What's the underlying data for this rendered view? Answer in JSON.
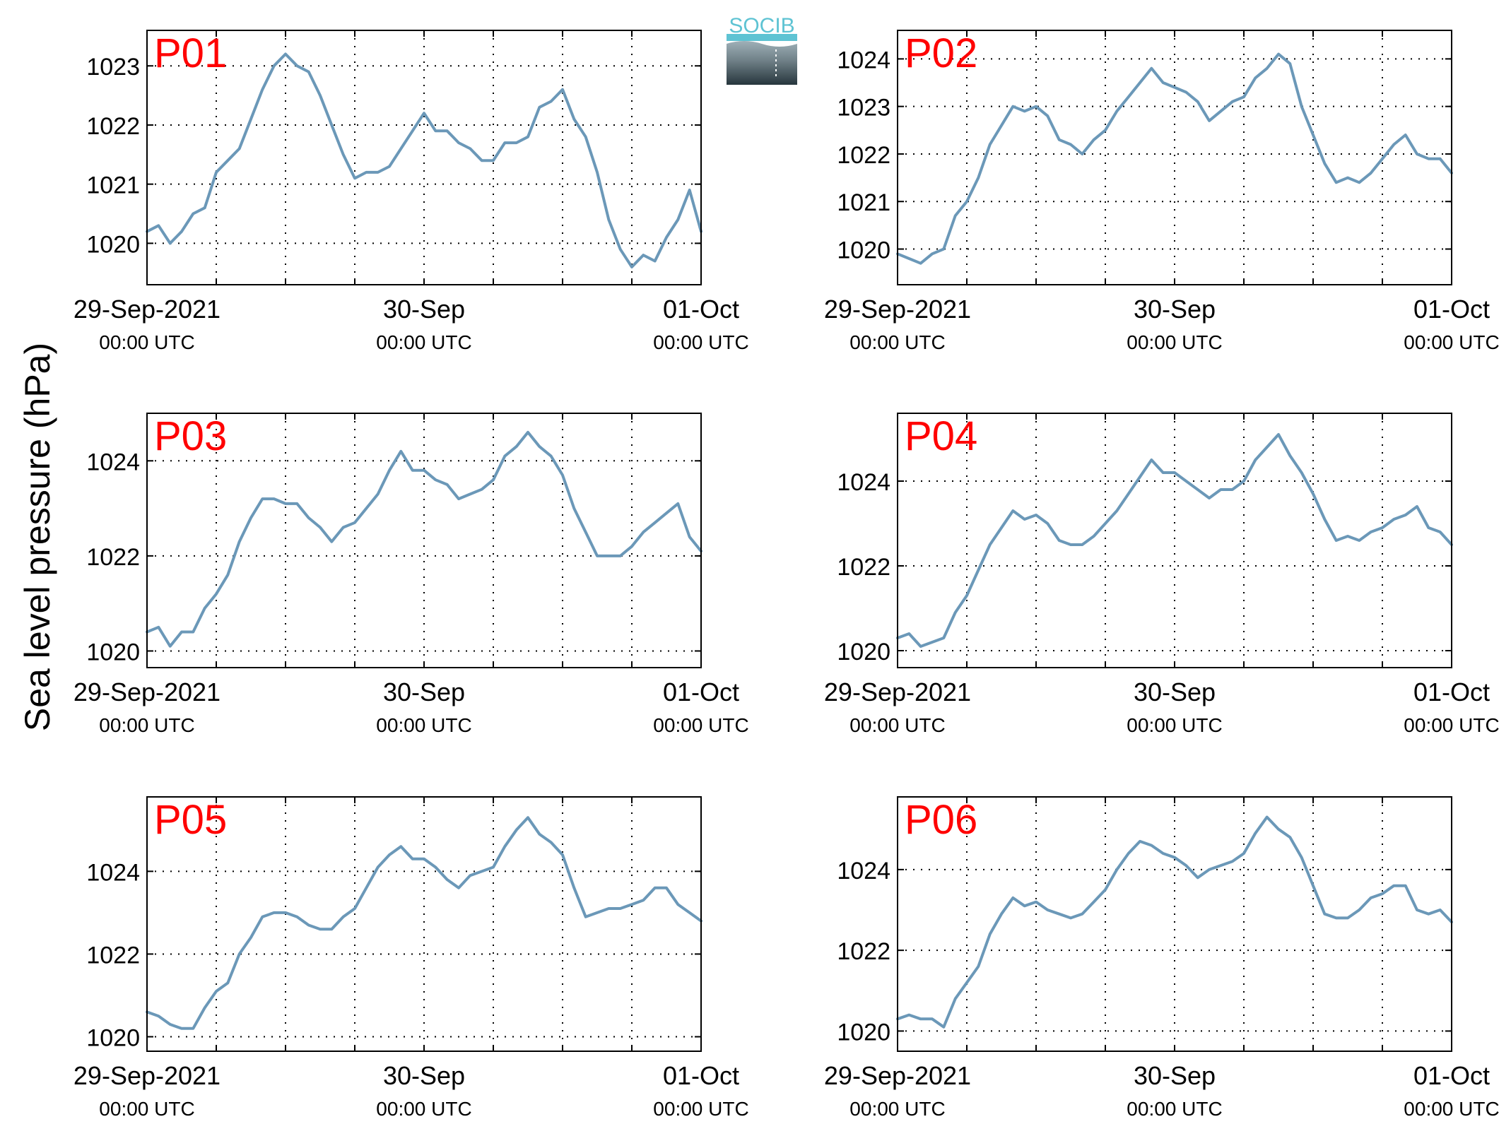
{
  "figure": {
    "ylabel": "Sea level pressure (hPa)",
    "logo_text": "SOCIB",
    "colors": {
      "line": "#6b98b8",
      "station_label": "#ff0000",
      "axis": "#000000",
      "grid": "#000000",
      "logo_top": "#5ec3d3",
      "logo_bottom": "#27363d"
    }
  },
  "chart_data": [
    {
      "type": "line",
      "panel_label": "P01",
      "xlabel": "",
      "ylabel": "",
      "xlim": [
        "2021-09-29T00:00",
        "2021-10-01T00:00"
      ],
      "x_ticks": [
        {
          "x": "2021-09-29T00:00",
          "date": "29-Sep-2021",
          "time": "00:00 UTC"
        },
        {
          "x": "2021-09-30T00:00",
          "date": "30-Sep",
          "time": "00:00 UTC"
        },
        {
          "x": "2021-10-01T00:00",
          "date": "01-Oct",
          "time": "00:00 UTC"
        }
      ],
      "x_minor_hours": [
        6,
        12,
        18,
        30,
        36,
        42
      ],
      "ylim": [
        1019.3,
        1023.6
      ],
      "y_ticks": [
        1020,
        1021,
        1022,
        1023
      ],
      "grid": true,
      "x": [
        "2021-09-29T00:00",
        "2021-09-29T01:00",
        "2021-09-29T02:00",
        "2021-09-29T03:00",
        "2021-09-29T04:00",
        "2021-09-29T05:00",
        "2021-09-29T06:00",
        "2021-09-29T07:00",
        "2021-09-29T08:00",
        "2021-09-29T09:00",
        "2021-09-29T10:00",
        "2021-09-29T11:00",
        "2021-09-29T12:00",
        "2021-09-29T13:00",
        "2021-09-29T14:00",
        "2021-09-29T15:00",
        "2021-09-29T16:00",
        "2021-09-29T17:00",
        "2021-09-29T18:00",
        "2021-09-29T19:00",
        "2021-09-29T20:00",
        "2021-09-29T21:00",
        "2021-09-29T22:00",
        "2021-09-29T23:00",
        "2021-09-30T00:00",
        "2021-09-30T01:00",
        "2021-09-30T02:00",
        "2021-09-30T03:00",
        "2021-09-30T04:00",
        "2021-09-30T05:00",
        "2021-09-30T06:00",
        "2021-09-30T07:00",
        "2021-09-30T08:00",
        "2021-09-30T09:00",
        "2021-09-30T10:00",
        "2021-09-30T11:00",
        "2021-09-30T12:00",
        "2021-09-30T13:00",
        "2021-09-30T14:00",
        "2021-09-30T15:00",
        "2021-09-30T16:00",
        "2021-09-30T17:00",
        "2021-09-30T18:00",
        "2021-09-30T19:00",
        "2021-09-30T20:00",
        "2021-09-30T21:00",
        "2021-09-30T22:00",
        "2021-09-30T23:00",
        "2021-10-01T00:00"
      ],
      "values": [
        1020.2,
        1020.3,
        1020.0,
        1020.2,
        1020.5,
        1020.6,
        1021.2,
        1021.4,
        1021.6,
        1022.1,
        1022.6,
        1023.0,
        1023.2,
        1023.0,
        1022.9,
        1022.5,
        1022.0,
        1021.5,
        1021.1,
        1021.2,
        1021.2,
        1021.3,
        1021.6,
        1021.9,
        1022.2,
        1021.9,
        1021.9,
        1021.7,
        1021.6,
        1021.4,
        1021.4,
        1021.7,
        1021.7,
        1021.8,
        1022.3,
        1022.4,
        1022.6,
        1022.1,
        1021.8,
        1021.2,
        1020.4,
        1019.9,
        1019.6,
        1019.8,
        1019.7,
        1020.1,
        1020.4,
        1020.9,
        1020.2
      ]
    },
    {
      "type": "line",
      "panel_label": "P02",
      "xlabel": "",
      "ylabel": "",
      "xlim": [
        "2021-09-29T00:00",
        "2021-10-01T00:00"
      ],
      "x_ticks": [
        {
          "x": "2021-09-29T00:00",
          "date": "29-Sep-2021",
          "time": "00:00 UTC"
        },
        {
          "x": "2021-09-30T00:00",
          "date": "30-Sep",
          "time": "00:00 UTC"
        },
        {
          "x": "2021-10-01T00:00",
          "date": "01-Oct",
          "time": "00:00 UTC"
        }
      ],
      "x_minor_hours": [
        6,
        12,
        18,
        30,
        36,
        42
      ],
      "ylim": [
        1019.25,
        1024.6
      ],
      "y_ticks": [
        1020,
        1021,
        1022,
        1023,
        1024
      ],
      "grid": true,
      "x": [
        "2021-09-29T00:00",
        "2021-09-29T01:00",
        "2021-09-29T02:00",
        "2021-09-29T03:00",
        "2021-09-29T04:00",
        "2021-09-29T05:00",
        "2021-09-29T06:00",
        "2021-09-29T07:00",
        "2021-09-29T08:00",
        "2021-09-29T09:00",
        "2021-09-29T10:00",
        "2021-09-29T11:00",
        "2021-09-29T12:00",
        "2021-09-29T13:00",
        "2021-09-29T14:00",
        "2021-09-29T15:00",
        "2021-09-29T16:00",
        "2021-09-29T17:00",
        "2021-09-29T18:00",
        "2021-09-29T19:00",
        "2021-09-29T20:00",
        "2021-09-29T21:00",
        "2021-09-29T22:00",
        "2021-09-29T23:00",
        "2021-09-30T00:00",
        "2021-09-30T01:00",
        "2021-09-30T02:00",
        "2021-09-30T03:00",
        "2021-09-30T04:00",
        "2021-09-30T05:00",
        "2021-09-30T06:00",
        "2021-09-30T07:00",
        "2021-09-30T08:00",
        "2021-09-30T09:00",
        "2021-09-30T10:00",
        "2021-09-30T11:00",
        "2021-09-30T12:00",
        "2021-09-30T13:00",
        "2021-09-30T14:00",
        "2021-09-30T15:00",
        "2021-09-30T16:00",
        "2021-09-30T17:00",
        "2021-09-30T18:00",
        "2021-09-30T19:00",
        "2021-09-30T20:00",
        "2021-09-30T21:00",
        "2021-09-30T22:00",
        "2021-09-30T23:00",
        "2021-10-01T00:00"
      ],
      "values": [
        1019.9,
        1019.8,
        1019.7,
        1019.9,
        1020.0,
        1020.7,
        1021.0,
        1021.5,
        1022.2,
        1022.6,
        1023.0,
        1022.9,
        1023.0,
        1022.8,
        1022.3,
        1022.2,
        1022.0,
        1022.3,
        1022.5,
        1022.9,
        1023.2,
        1023.5,
        1023.8,
        1023.5,
        1023.4,
        1023.3,
        1023.1,
        1022.7,
        1022.9,
        1023.1,
        1023.2,
        1023.6,
        1023.8,
        1024.1,
        1023.9,
        1023.0,
        1022.4,
        1021.8,
        1021.4,
        1021.5,
        1021.4,
        1021.6,
        1021.9,
        1022.2,
        1022.4,
        1022.0,
        1021.9,
        1021.9,
        1021.6
      ]
    },
    {
      "type": "line",
      "panel_label": "P03",
      "xlabel": "",
      "ylabel": "",
      "xlim": [
        "2021-09-29T00:00",
        "2021-10-01T00:00"
      ],
      "x_ticks": [
        {
          "x": "2021-09-29T00:00",
          "date": "29-Sep-2021",
          "time": "00:00 UTC"
        },
        {
          "x": "2021-09-30T00:00",
          "date": "30-Sep",
          "time": "00:00 UTC"
        },
        {
          "x": "2021-10-01T00:00",
          "date": "01-Oct",
          "time": "00:00 UTC"
        }
      ],
      "x_minor_hours": [
        6,
        12,
        18,
        30,
        36,
        42
      ],
      "ylim": [
        1019.65,
        1025.0
      ],
      "y_ticks": [
        1020,
        1022,
        1024
      ],
      "grid": true,
      "x": [
        "2021-09-29T00:00",
        "2021-09-29T01:00",
        "2021-09-29T02:00",
        "2021-09-29T03:00",
        "2021-09-29T04:00",
        "2021-09-29T05:00",
        "2021-09-29T06:00",
        "2021-09-29T07:00",
        "2021-09-29T08:00",
        "2021-09-29T09:00",
        "2021-09-29T10:00",
        "2021-09-29T11:00",
        "2021-09-29T12:00",
        "2021-09-29T13:00",
        "2021-09-29T14:00",
        "2021-09-29T15:00",
        "2021-09-29T16:00",
        "2021-09-29T17:00",
        "2021-09-29T18:00",
        "2021-09-29T19:00",
        "2021-09-29T20:00",
        "2021-09-29T21:00",
        "2021-09-29T22:00",
        "2021-09-29T23:00",
        "2021-09-30T00:00",
        "2021-09-30T01:00",
        "2021-09-30T02:00",
        "2021-09-30T03:00",
        "2021-09-30T04:00",
        "2021-09-30T05:00",
        "2021-09-30T06:00",
        "2021-09-30T07:00",
        "2021-09-30T08:00",
        "2021-09-30T09:00",
        "2021-09-30T10:00",
        "2021-09-30T11:00",
        "2021-09-30T12:00",
        "2021-09-30T13:00",
        "2021-09-30T14:00",
        "2021-09-30T15:00",
        "2021-09-30T16:00",
        "2021-09-30T17:00",
        "2021-09-30T18:00",
        "2021-09-30T19:00",
        "2021-09-30T20:00",
        "2021-09-30T21:00",
        "2021-09-30T22:00",
        "2021-09-30T23:00",
        "2021-10-01T00:00"
      ],
      "values": [
        1020.4,
        1020.5,
        1020.1,
        1020.4,
        1020.4,
        1020.9,
        1021.2,
        1021.6,
        1022.3,
        1022.8,
        1023.2,
        1023.2,
        1023.1,
        1023.1,
        1022.8,
        1022.6,
        1022.3,
        1022.6,
        1022.7,
        1023.0,
        1023.3,
        1023.8,
        1024.2,
        1023.8,
        1023.8,
        1023.6,
        1023.5,
        1023.2,
        1023.3,
        1023.4,
        1023.6,
        1024.1,
        1024.3,
        1024.6,
        1024.3,
        1024.1,
        1023.7,
        1023.0,
        1022.5,
        1022.0,
        1022.0,
        1022.0,
        1022.2,
        1022.5,
        1022.7,
        1022.9,
        1023.1,
        1022.4,
        1022.1
      ]
    },
    {
      "type": "line",
      "panel_label": "P04",
      "xlabel": "",
      "ylabel": "",
      "xlim": [
        "2021-09-29T00:00",
        "2021-10-01T00:00"
      ],
      "x_ticks": [
        {
          "x": "2021-09-29T00:00",
          "date": "29-Sep-2021",
          "time": "00:00 UTC"
        },
        {
          "x": "2021-09-30T00:00",
          "date": "30-Sep",
          "time": "00:00 UTC"
        },
        {
          "x": "2021-10-01T00:00",
          "date": "01-Oct",
          "time": "00:00 UTC"
        }
      ],
      "x_minor_hours": [
        6,
        12,
        18,
        30,
        36,
        42
      ],
      "ylim": [
        1019.6,
        1025.6
      ],
      "y_ticks": [
        1020,
        1022,
        1024
      ],
      "grid": true,
      "x": [
        "2021-09-29T00:00",
        "2021-09-29T01:00",
        "2021-09-29T02:00",
        "2021-09-29T03:00",
        "2021-09-29T04:00",
        "2021-09-29T05:00",
        "2021-09-29T06:00",
        "2021-09-29T07:00",
        "2021-09-29T08:00",
        "2021-09-29T09:00",
        "2021-09-29T10:00",
        "2021-09-29T11:00",
        "2021-09-29T12:00",
        "2021-09-29T13:00",
        "2021-09-29T14:00",
        "2021-09-29T15:00",
        "2021-09-29T16:00",
        "2021-09-29T17:00",
        "2021-09-29T18:00",
        "2021-09-29T19:00",
        "2021-09-29T20:00",
        "2021-09-29T21:00",
        "2021-09-29T22:00",
        "2021-09-29T23:00",
        "2021-09-30T00:00",
        "2021-09-30T01:00",
        "2021-09-30T02:00",
        "2021-09-30T03:00",
        "2021-09-30T04:00",
        "2021-09-30T05:00",
        "2021-09-30T06:00",
        "2021-09-30T07:00",
        "2021-09-30T08:00",
        "2021-09-30T09:00",
        "2021-09-30T10:00",
        "2021-09-30T11:00",
        "2021-09-30T12:00",
        "2021-09-30T13:00",
        "2021-09-30T14:00",
        "2021-09-30T15:00",
        "2021-09-30T16:00",
        "2021-09-30T17:00",
        "2021-09-30T18:00",
        "2021-09-30T19:00",
        "2021-09-30T20:00",
        "2021-09-30T21:00",
        "2021-09-30T22:00",
        "2021-09-30T23:00",
        "2021-10-01T00:00"
      ],
      "values": [
        1020.3,
        1020.4,
        1020.1,
        1020.2,
        1020.3,
        1020.9,
        1021.3,
        1021.9,
        1022.5,
        1022.9,
        1023.3,
        1023.1,
        1023.2,
        1023.0,
        1022.6,
        1022.5,
        1022.5,
        1022.7,
        1023.0,
        1023.3,
        1023.7,
        1024.1,
        1024.5,
        1024.2,
        1024.2,
        1024.0,
        1023.8,
        1023.6,
        1023.8,
        1023.8,
        1024.0,
        1024.5,
        1024.8,
        1025.1,
        1024.6,
        1024.2,
        1023.7,
        1023.1,
        1022.6,
        1022.7,
        1022.6,
        1022.8,
        1022.9,
        1023.1,
        1023.2,
        1023.4,
        1022.9,
        1022.8,
        1022.5
      ]
    },
    {
      "type": "line",
      "panel_label": "P05",
      "xlabel": "",
      "ylabel": "",
      "xlim": [
        "2021-09-29T00:00",
        "2021-10-01T00:00"
      ],
      "x_ticks": [
        {
          "x": "2021-09-29T00:00",
          "date": "29-Sep-2021",
          "time": "00:00 UTC"
        },
        {
          "x": "2021-09-30T00:00",
          "date": "30-Sep",
          "time": "00:00 UTC"
        },
        {
          "x": "2021-10-01T00:00",
          "date": "01-Oct",
          "time": "00:00 UTC"
        }
      ],
      "x_minor_hours": [
        6,
        12,
        18,
        30,
        36,
        42
      ],
      "ylim": [
        1019.65,
        1025.8
      ],
      "y_ticks": [
        1020,
        1022,
        1024
      ],
      "grid": true,
      "x": [
        "2021-09-29T00:00",
        "2021-09-29T01:00",
        "2021-09-29T02:00",
        "2021-09-29T03:00",
        "2021-09-29T04:00",
        "2021-09-29T05:00",
        "2021-09-29T06:00",
        "2021-09-29T07:00",
        "2021-09-29T08:00",
        "2021-09-29T09:00",
        "2021-09-29T10:00",
        "2021-09-29T11:00",
        "2021-09-29T12:00",
        "2021-09-29T13:00",
        "2021-09-29T14:00",
        "2021-09-29T15:00",
        "2021-09-29T16:00",
        "2021-09-29T17:00",
        "2021-09-29T18:00",
        "2021-09-29T19:00",
        "2021-09-29T20:00",
        "2021-09-29T21:00",
        "2021-09-29T22:00",
        "2021-09-29T23:00",
        "2021-09-30T00:00",
        "2021-09-30T01:00",
        "2021-09-30T02:00",
        "2021-09-30T03:00",
        "2021-09-30T04:00",
        "2021-09-30T05:00",
        "2021-09-30T06:00",
        "2021-09-30T07:00",
        "2021-09-30T08:00",
        "2021-09-30T09:00",
        "2021-09-30T10:00",
        "2021-09-30T11:00",
        "2021-09-30T12:00",
        "2021-09-30T13:00",
        "2021-09-30T14:00",
        "2021-09-30T15:00",
        "2021-09-30T16:00",
        "2021-09-30T17:00",
        "2021-09-30T18:00",
        "2021-09-30T19:00",
        "2021-09-30T20:00",
        "2021-09-30T21:00",
        "2021-09-30T22:00",
        "2021-09-30T23:00",
        "2021-10-01T00:00"
      ],
      "values": [
        1020.6,
        1020.5,
        1020.3,
        1020.2,
        1020.2,
        1020.7,
        1021.1,
        1021.3,
        1022.0,
        1022.4,
        1022.9,
        1023.0,
        1023.0,
        1022.9,
        1022.7,
        1022.6,
        1022.6,
        1022.9,
        1023.1,
        1023.6,
        1024.1,
        1024.4,
        1024.6,
        1024.3,
        1024.3,
        1024.1,
        1023.8,
        1023.6,
        1023.9,
        1024.0,
        1024.1,
        1024.6,
        1025.0,
        1025.3,
        1024.9,
        1024.7,
        1024.4,
        1023.6,
        1022.9,
        1023.0,
        1023.1,
        1023.1,
        1023.2,
        1023.3,
        1023.6,
        1023.6,
        1023.2,
        1023.0,
        1022.8
      ]
    },
    {
      "type": "line",
      "panel_label": "P06",
      "xlabel": "",
      "ylabel": "",
      "xlim": [
        "2021-09-29T00:00",
        "2021-10-01T00:00"
      ],
      "x_ticks": [
        {
          "x": "2021-09-29T00:00",
          "date": "29-Sep-2021",
          "time": "00:00 UTC"
        },
        {
          "x": "2021-09-30T00:00",
          "date": "30-Sep",
          "time": "00:00 UTC"
        },
        {
          "x": "2021-10-01T00:00",
          "date": "01-Oct",
          "time": "00:00 UTC"
        }
      ],
      "x_minor_hours": [
        6,
        12,
        18,
        30,
        36,
        42
      ],
      "ylim": [
        1019.5,
        1025.8
      ],
      "y_ticks": [
        1020,
        1022,
        1024
      ],
      "grid": true,
      "x": [
        "2021-09-29T00:00",
        "2021-09-29T01:00",
        "2021-09-29T02:00",
        "2021-09-29T03:00",
        "2021-09-29T04:00",
        "2021-09-29T05:00",
        "2021-09-29T06:00",
        "2021-09-29T07:00",
        "2021-09-29T08:00",
        "2021-09-29T09:00",
        "2021-09-29T10:00",
        "2021-09-29T11:00",
        "2021-09-29T12:00",
        "2021-09-29T13:00",
        "2021-09-29T14:00",
        "2021-09-29T15:00",
        "2021-09-29T16:00",
        "2021-09-29T17:00",
        "2021-09-29T18:00",
        "2021-09-29T19:00",
        "2021-09-29T20:00",
        "2021-09-29T21:00",
        "2021-09-29T22:00",
        "2021-09-29T23:00",
        "2021-09-30T00:00",
        "2021-09-30T01:00",
        "2021-09-30T02:00",
        "2021-09-30T03:00",
        "2021-09-30T04:00",
        "2021-09-30T05:00",
        "2021-09-30T06:00",
        "2021-09-30T07:00",
        "2021-09-30T08:00",
        "2021-09-30T09:00",
        "2021-09-30T10:00",
        "2021-09-30T11:00",
        "2021-09-30T12:00",
        "2021-09-30T13:00",
        "2021-09-30T14:00",
        "2021-09-30T15:00",
        "2021-09-30T16:00",
        "2021-09-30T17:00",
        "2021-09-30T18:00",
        "2021-09-30T19:00",
        "2021-09-30T20:00",
        "2021-09-30T21:00",
        "2021-09-30T22:00",
        "2021-09-30T23:00",
        "2021-10-01T00:00"
      ],
      "values": [
        1020.3,
        1020.4,
        1020.3,
        1020.3,
        1020.1,
        1020.8,
        1021.2,
        1021.6,
        1022.4,
        1022.9,
        1023.3,
        1023.1,
        1023.2,
        1023.0,
        1022.9,
        1022.8,
        1022.9,
        1023.2,
        1023.5,
        1024.0,
        1024.4,
        1024.7,
        1024.6,
        1024.4,
        1024.3,
        1024.1,
        1023.8,
        1024.0,
        1024.1,
        1024.2,
        1024.4,
        1024.9,
        1025.3,
        1025.0,
        1024.8,
        1024.3,
        1023.6,
        1022.9,
        1022.8,
        1022.8,
        1023.0,
        1023.3,
        1023.4,
        1023.6,
        1023.6,
        1023.0,
        1022.9,
        1023.0,
        1022.7
      ]
    }
  ]
}
